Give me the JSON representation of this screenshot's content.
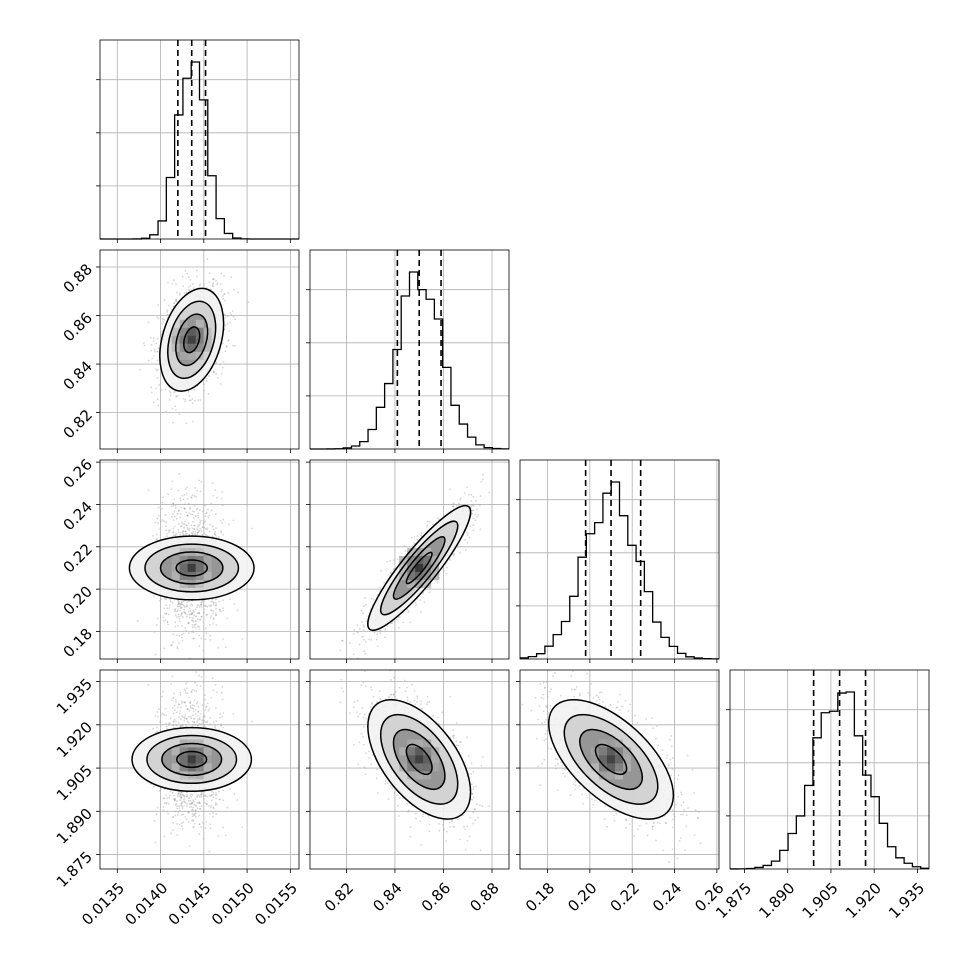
{
  "chart_data": {
    "type": "corner",
    "title": "",
    "grid": true,
    "colors": {
      "line": "#000000",
      "density": "#000000",
      "scatter": "#8c8c8c",
      "grid": "#b0b0b0"
    },
    "parameters": [
      {
        "range": [
          0.0133,
          0.0156
        ],
        "ticks": [
          0.0135,
          0.014,
          0.0145,
          0.015,
          0.0155
        ],
        "tick_labels": [
          "0.0135",
          "0.0140",
          "0.0145",
          "0.0150",
          "0.0155"
        ],
        "median": 0.01436,
        "q16": 0.0142,
        "q84": 0.01452,
        "sd": 0.00016,
        "hist_peak": 1.0
      },
      {
        "range": [
          0.805,
          0.887
        ],
        "ticks": [
          0.82,
          0.84,
          0.86,
          0.88
        ],
        "tick_labels": [
          "0.82",
          "0.84",
          "0.86",
          "0.88"
        ],
        "median": 0.85,
        "q16": 0.841,
        "q84": 0.859,
        "sd": 0.0092,
        "hist_peak": 1.0
      },
      {
        "range": [
          0.167,
          0.261
        ],
        "ticks": [
          0.18,
          0.2,
          0.22,
          0.24,
          0.26
        ],
        "tick_labels": [
          "0.18",
          "0.20",
          "0.22",
          "0.24",
          "0.26"
        ],
        "median": 0.21,
        "q16": 0.198,
        "q84": 0.224,
        "sd": 0.0128,
        "hist_peak": 1.0
      },
      {
        "range": [
          1.87,
          1.939
        ],
        "ticks": [
          1.875,
          1.89,
          1.905,
          1.92,
          1.935
        ],
        "tick_labels": [
          "1.875",
          "1.890",
          "1.905",
          "1.920",
          "1.935"
        ],
        "median": 1.908,
        "q16": 1.899,
        "q84": 1.917,
        "sd": 0.009,
        "hist_peak": 1.0
      }
    ],
    "correlations": [
      {
        "i": 1,
        "j": 0,
        "rho": 0.32
      },
      {
        "i": 2,
        "j": 0,
        "rho": 0.0
      },
      {
        "i": 2,
        "j": 1,
        "rho": 0.9
      },
      {
        "i": 3,
        "j": 0,
        "rho": 0.0
      },
      {
        "i": 3,
        "j": 1,
        "rho": -0.55
      },
      {
        "i": 3,
        "j": 2,
        "rho": -0.6
      }
    ],
    "quantile_lines": [
      0.16,
      0.5,
      0.84
    ],
    "contour_levels_sigma": [
      0.5,
      1.0,
      1.5,
      2.0
    ]
  }
}
